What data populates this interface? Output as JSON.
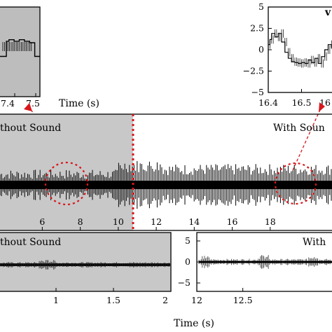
{
  "chart_data": [
    {
      "id": "inset_top_left",
      "type": "line",
      "xlabel": "Time (s)",
      "xticks": [
        "7.4",
        "7.5"
      ],
      "xlim": [
        7.34,
        7.5
      ],
      "x": [
        7.34,
        7.36,
        7.37,
        7.38,
        7.4,
        7.42,
        7.44,
        7.46,
        7.48,
        7.5
      ],
      "values": [
        0.2,
        0.2,
        1.2,
        1.3,
        1.2,
        1.3,
        1.2,
        1.1,
        0.2,
        0.2
      ],
      "background": "#bdbdbd"
    },
    {
      "id": "inset_top_right",
      "type": "line",
      "xlabel": "",
      "yticks": [
        "5",
        "2.5",
        "0",
        "−2.5",
        "−5"
      ],
      "ylim": [
        -5,
        5
      ],
      "xticks": [
        "16.4",
        "16.5",
        "16"
      ],
      "xlim": [
        16.4,
        16.6
      ],
      "x": [
        16.4,
        16.405,
        16.41,
        16.42,
        16.43,
        16.44,
        16.45,
        16.46,
        16.47,
        16.48,
        16.49,
        16.5,
        16.51,
        16.52,
        16.53,
        16.54,
        16.55,
        16.56,
        16.57,
        16.58,
        16.59
      ],
      "values": [
        0.6,
        1.2,
        1.9,
        1.5,
        1.9,
        0.9,
        -0.3,
        -1.0,
        -1.4,
        -1.5,
        -1.6,
        -1.5,
        -1.6,
        -1.2,
        -1.5,
        -1.0,
        -1.6,
        -0.8,
        0.0,
        0.6,
        0.2
      ]
    },
    {
      "id": "main",
      "type": "line",
      "xlim": [
        3.7,
        21.4
      ],
      "xticks": [
        "6",
        "8",
        "10",
        "12",
        "14",
        "16",
        "18"
      ],
      "divider_x": 10,
      "annotations": [
        "thout Sound",
        "With Soun"
      ],
      "left_region_color": "#c8c8c8",
      "highlight_color": "#d8161b"
    },
    {
      "id": "bottom_left",
      "type": "line",
      "title": "thout Sound",
      "xlim": [
        0.5,
        2.0
      ],
      "xticks": [
        "1",
        "1.5",
        "2"
      ],
      "background": "#c8c8c8"
    },
    {
      "id": "bottom_right",
      "type": "line",
      "title": "With",
      "xlim": [
        12.0,
        13.5
      ],
      "xticks": [
        "12",
        "12.5"
      ],
      "yticks": [
        "5",
        "0",
        "−5"
      ],
      "ylim": [
        -7,
        7
      ]
    }
  ],
  "figure": {
    "xlabel": "Time (s)"
  }
}
